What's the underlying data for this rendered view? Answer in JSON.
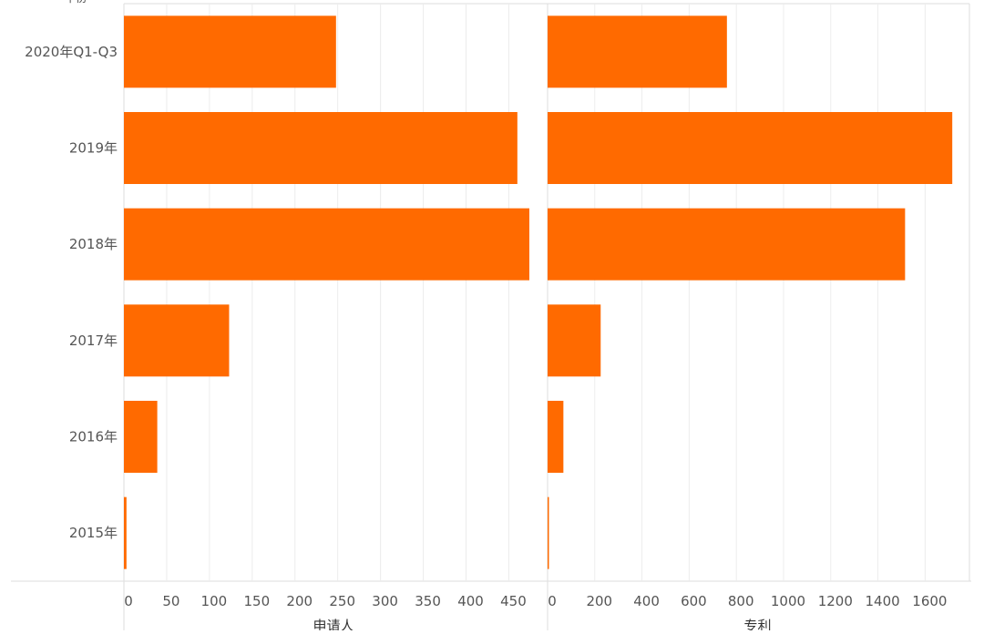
{
  "top_cut_label": "年份",
  "chart_data": {
    "type": "bar",
    "orientation": "horizontal",
    "categories": [
      "2020年Q1-Q3",
      "2019年",
      "2018年",
      "2017年",
      "2016年",
      "2015年"
    ],
    "accent_color": "#ff6a00",
    "grid": true,
    "panels": [
      {
        "xlabel": "申请人",
        "xlim": [
          0,
          490
        ],
        "ticks": [
          0,
          50,
          100,
          150,
          200,
          250,
          300,
          350,
          400,
          450
        ],
        "tick_labels": [
          "0",
          "50",
          "100",
          "150",
          "200",
          "250",
          "300",
          "350",
          "400",
          "450"
        ],
        "values": [
          248,
          460,
          474,
          123,
          39,
          3
        ]
      },
      {
        "xlabel": "专利",
        "xlim": [
          0,
          1780
        ],
        "ticks": [
          0,
          200,
          400,
          600,
          800,
          1000,
          1200,
          1400,
          1600
        ],
        "tick_labels": [
          "0",
          "200",
          "400",
          "600",
          "800",
          "1000",
          "1200",
          "1400",
          "1600"
        ],
        "values": [
          760,
          1715,
          1515,
          225,
          67,
          5
        ]
      }
    ]
  }
}
